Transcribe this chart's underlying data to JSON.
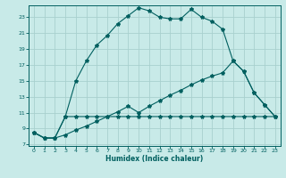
{
  "xlabel": "Humidex (Indice chaleur)",
  "bg_color": "#c8eae8",
  "grid_color": "#a8d0ce",
  "line_color": "#005f5f",
  "xmin": -0.5,
  "xmax": 23.5,
  "ymin": 6.8,
  "ymax": 24.5,
  "ytick_vals": [
    7,
    9,
    11,
    13,
    15,
    17,
    19,
    21,
    23
  ],
  "xtick_vals": [
    0,
    1,
    2,
    3,
    4,
    5,
    6,
    7,
    8,
    9,
    10,
    11,
    12,
    13,
    14,
    15,
    16,
    17,
    18,
    19,
    20,
    21,
    22,
    23
  ],
  "curve1_x": [
    0,
    1,
    2,
    3,
    4,
    5,
    6,
    7,
    8,
    9,
    10,
    11,
    12,
    13,
    14,
    15,
    16,
    17,
    18,
    19,
    20,
    21,
    22,
    23
  ],
  "curve1_y": [
    8.5,
    7.8,
    7.8,
    10.5,
    15.0,
    17.5,
    19.5,
    20.7,
    22.2,
    23.2,
    24.2,
    23.8,
    23.0,
    22.8,
    22.8,
    24.0,
    23.0,
    22.5,
    21.5,
    17.5,
    16.2,
    13.5,
    12.0,
    10.5
  ],
  "curve2_x": [
    0,
    1,
    2,
    3,
    4,
    5,
    6,
    7,
    8,
    9,
    10,
    11,
    12,
    13,
    14,
    15,
    16,
    17,
    18,
    19,
    20,
    21,
    22,
    23
  ],
  "curve2_y": [
    8.5,
    7.8,
    7.8,
    10.5,
    10.5,
    10.5,
    10.5,
    10.5,
    10.5,
    10.5,
    10.5,
    10.5,
    10.5,
    10.5,
    10.5,
    10.5,
    10.5,
    10.5,
    10.5,
    10.5,
    10.5,
    10.5,
    10.5,
    10.5
  ],
  "curve3_x": [
    0,
    1,
    2,
    3,
    4,
    5,
    6,
    7,
    8,
    9,
    10,
    11,
    12,
    13,
    14,
    15,
    16,
    17,
    18,
    19,
    20,
    21,
    22,
    23
  ],
  "curve3_y": [
    8.5,
    7.8,
    7.8,
    8.2,
    8.8,
    9.3,
    9.9,
    10.5,
    11.1,
    11.8,
    11.0,
    11.8,
    12.5,
    13.2,
    13.8,
    14.5,
    15.1,
    15.6,
    16.0,
    17.5,
    16.2,
    13.5,
    12.0,
    10.5
  ]
}
